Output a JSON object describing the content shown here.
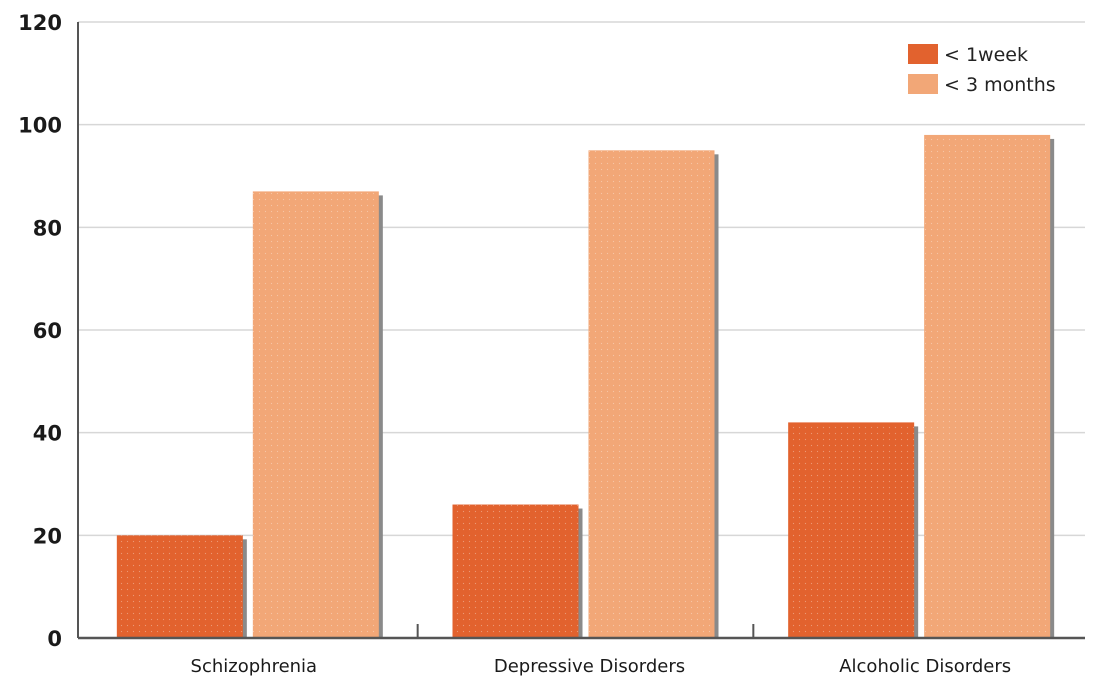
{
  "chart_data": {
    "type": "bar",
    "categories": [
      "Schizophrenia",
      "Depressive Disorders",
      "Alcoholic Disorders"
    ],
    "series": [
      {
        "name": "< 1week",
        "values": [
          20,
          26,
          42
        ],
        "color": "#e2622e"
      },
      {
        "name": "< 3 months",
        "values": [
          87,
          95,
          98
        ],
        "color": "#f2a777"
      }
    ],
    "y_ticks": [
      "0",
      "20",
      "40",
      "60",
      "80",
      "100",
      "120"
    ],
    "ylim": [
      0,
      120
    ],
    "title": "",
    "xlabel": "",
    "ylabel": "",
    "grid": true,
    "legend_position": "top-right",
    "colors": {
      "gridline": "#d7d7d7",
      "axis": "#555555",
      "shadow": "#8a8a8a"
    }
  }
}
